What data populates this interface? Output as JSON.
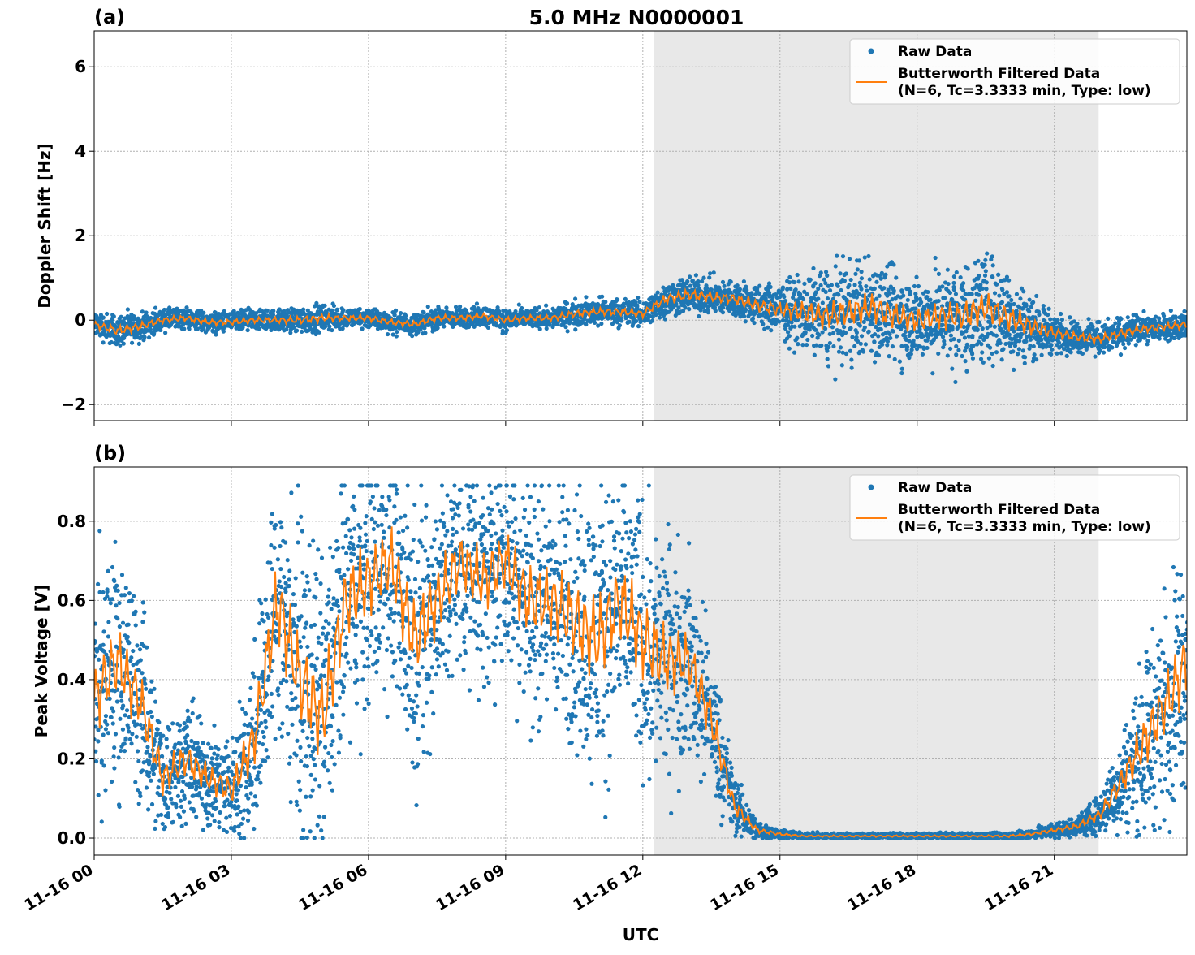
{
  "chart_data": {
    "title": "5.0 MHz N0000001",
    "xlabel": "UTC",
    "x_unit": "hours since 11-16 00:00",
    "xlim": [
      0,
      23.9
    ],
    "x_ticks": [
      0,
      3,
      6,
      9,
      12,
      15,
      18,
      21
    ],
    "x_tick_labels": [
      "11-16 00",
      "11-16 03",
      "11-16 06",
      "11-16 09",
      "11-16 12",
      "11-16 15",
      "11-16 18",
      "11-16 21"
    ],
    "shaded_interval": [
      12.25,
      21.97
    ],
    "colors": {
      "raw": "#1f77b4",
      "filtered": "#ff7f0e",
      "shade": "#e8e8e8"
    },
    "legend": {
      "placement": "top-right",
      "raw": "Raw Data",
      "filtered_line1": "Butterworth Filtered Data",
      "filtered_line2": "(N=6, Tc=3.3333 min, Type: low)"
    },
    "panels": [
      {
        "label": "(a)",
        "type": "scatter+line",
        "ylabel": "Doppler Shift [Hz]",
        "ylim": [
          -2.38,
          6.85
        ],
        "y_ticks": [
          -2,
          0,
          2,
          4,
          6
        ],
        "y_tick_labels": [
          "−2",
          "0",
          "2",
          "4",
          "6"
        ],
        "x": [
          0,
          0.5,
          1,
          1.5,
          2,
          2.5,
          3,
          3.5,
          4,
          4.5,
          5,
          5.5,
          6,
          6.5,
          7,
          7.5,
          8,
          8.5,
          9,
          9.5,
          10,
          10.5,
          11,
          11.5,
          12,
          12.5,
          13,
          13.5,
          14,
          14.5,
          15,
          15.5,
          16,
          16.5,
          17,
          17.5,
          18,
          18.5,
          19,
          19.5,
          20,
          20.5,
          21,
          21.5,
          22,
          22.5,
          23,
          23.5,
          23.9
        ],
        "filtered": [
          -0.1,
          -0.25,
          -0.15,
          0.0,
          0.05,
          -0.05,
          -0.05,
          0.0,
          0.0,
          0.0,
          0.05,
          0.05,
          0.05,
          -0.05,
          -0.1,
          0.05,
          0.05,
          0.1,
          0.0,
          0.05,
          0.05,
          0.15,
          0.2,
          0.2,
          0.15,
          0.5,
          0.6,
          0.55,
          0.5,
          0.35,
          0.25,
          0.2,
          0.1,
          0.2,
          0.3,
          0.1,
          0.0,
          0.1,
          0.1,
          0.3,
          0.05,
          -0.15,
          -0.3,
          -0.4,
          -0.45,
          -0.3,
          -0.2,
          -0.15,
          -0.1
        ],
        "raw_spread": [
          0.25,
          0.3,
          0.25,
          0.2,
          0.2,
          0.2,
          0.2,
          0.2,
          0.2,
          0.25,
          0.25,
          0.2,
          0.2,
          0.2,
          0.2,
          0.2,
          0.2,
          0.2,
          0.2,
          0.2,
          0.2,
          0.25,
          0.25,
          0.25,
          0.25,
          0.35,
          0.35,
          0.35,
          0.35,
          0.4,
          0.5,
          0.7,
          0.9,
          0.9,
          1.0,
          0.9,
          0.8,
          0.9,
          1.0,
          1.0,
          0.9,
          0.6,
          0.35,
          0.3,
          0.3,
          0.3,
          0.25,
          0.25,
          0.25
        ]
      },
      {
        "label": "(b)",
        "type": "scatter+line",
        "ylabel": "Peak Voltage [V]",
        "ylim": [
          -0.043,
          0.937
        ],
        "y_ticks": [
          0.0,
          0.2,
          0.4,
          0.6,
          0.8
        ],
        "y_tick_labels": [
          "0.0",
          "0.2",
          "0.4",
          "0.6",
          "0.8"
        ],
        "x": [
          0,
          0.5,
          1,
          1.5,
          2,
          2.5,
          3,
          3.5,
          4,
          4.5,
          5,
          5.5,
          6,
          6.5,
          7,
          7.5,
          8,
          8.5,
          9,
          9.5,
          10,
          10.5,
          11,
          11.5,
          12,
          12.5,
          13,
          13.5,
          14,
          14.5,
          15,
          15.5,
          16,
          16.5,
          17,
          17.5,
          18,
          18.5,
          19,
          19.5,
          20,
          20.5,
          21,
          21.5,
          22,
          22.5,
          23,
          23.5,
          23.9
        ],
        "filtered": [
          0.35,
          0.45,
          0.35,
          0.15,
          0.2,
          0.15,
          0.12,
          0.25,
          0.6,
          0.4,
          0.3,
          0.6,
          0.65,
          0.7,
          0.5,
          0.6,
          0.7,
          0.65,
          0.7,
          0.6,
          0.6,
          0.55,
          0.5,
          0.6,
          0.5,
          0.45,
          0.45,
          0.3,
          0.08,
          0.02,
          0.01,
          0.005,
          0.005,
          0.005,
          0.005,
          0.005,
          0.005,
          0.005,
          0.005,
          0.005,
          0.005,
          0.01,
          0.02,
          0.03,
          0.06,
          0.15,
          0.25,
          0.35,
          0.45
        ],
        "raw_spread": [
          0.25,
          0.25,
          0.2,
          0.12,
          0.12,
          0.1,
          0.1,
          0.2,
          0.3,
          0.3,
          0.3,
          0.28,
          0.25,
          0.25,
          0.28,
          0.25,
          0.2,
          0.22,
          0.22,
          0.25,
          0.25,
          0.28,
          0.3,
          0.28,
          0.28,
          0.25,
          0.2,
          0.15,
          0.06,
          0.02,
          0.01,
          0.006,
          0.006,
          0.006,
          0.006,
          0.006,
          0.006,
          0.006,
          0.006,
          0.006,
          0.008,
          0.01,
          0.015,
          0.02,
          0.04,
          0.1,
          0.18,
          0.22,
          0.25
        ]
      }
    ]
  }
}
